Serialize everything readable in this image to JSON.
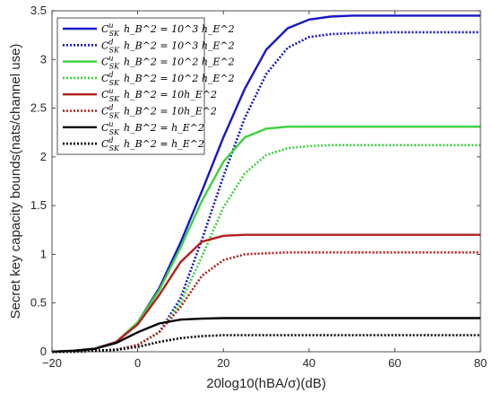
{
  "chart_data": {
    "type": "line",
    "xlabel": "20log10(hBA/σ)(dB)",
    "ylabel": "Secret key capacity bounds(nats/channel use)",
    "xlim": [
      -20,
      80
    ],
    "ylim": [
      0,
      3.5
    ],
    "xticks": [
      "-20",
      "0",
      "20",
      "40",
      "60",
      "80"
    ],
    "yticks": [
      "0",
      "0.5",
      "1",
      "1.5",
      "2",
      "2.5",
      "3",
      "3.5"
    ],
    "grid": false,
    "legend_position": "top-left",
    "series": [
      {
        "name": "C_SK^u h_B^2 = 10^3 h_E^2",
        "legend_main": "C",
        "legend_sup": "u",
        "legend_sub": "SK",
        "legend_rel": "h_B^2 = 10^3 h_E^2",
        "color": "#1616c8",
        "dash": "solid",
        "x": [
          -20,
          -15,
          -10,
          -5,
          0,
          5,
          10,
          15,
          20,
          25,
          30,
          35,
          40,
          45,
          50,
          60,
          70,
          80
        ],
        "y": [
          0,
          0.01,
          0.03,
          0.1,
          0.3,
          0.65,
          1.12,
          1.65,
          2.2,
          2.7,
          3.1,
          3.32,
          3.41,
          3.44,
          3.45,
          3.45,
          3.45,
          3.45
        ]
      },
      {
        "name": "C_SK^d h_B^2 = 10^3 h_E^2",
        "legend_main": "C",
        "legend_sup": "d",
        "legend_sub": "SK",
        "legend_rel": "h_B^2 = 10^3 h_E^2",
        "color": "#1616c8",
        "dash": "dotted",
        "x": [
          -20,
          -15,
          -10,
          -5,
          0,
          5,
          10,
          15,
          20,
          25,
          30,
          35,
          40,
          45,
          50,
          60,
          70,
          80
        ],
        "y": [
          0,
          0,
          0.01,
          0.02,
          0.07,
          0.2,
          0.55,
          1.15,
          1.8,
          2.4,
          2.85,
          3.12,
          3.23,
          3.26,
          3.27,
          3.28,
          3.28,
          3.28
        ]
      },
      {
        "name": "C_SK^u h_B^2 = 10^2 h_E^2",
        "legend_main": "C",
        "legend_sup": "u",
        "legend_sub": "SK",
        "legend_rel": "h_B^2 = 10^2 h_E^2",
        "color": "#3cd23c",
        "dash": "solid",
        "x": [
          -20,
          -15,
          -10,
          -5,
          0,
          5,
          10,
          15,
          20,
          25,
          30,
          35,
          40,
          45,
          50,
          60,
          70,
          80
        ],
        "y": [
          0,
          0.01,
          0.03,
          0.1,
          0.3,
          0.63,
          1.07,
          1.55,
          1.95,
          2.2,
          2.29,
          2.31,
          2.31,
          2.31,
          2.31,
          2.31,
          2.31,
          2.31
        ]
      },
      {
        "name": "C_SK^d h_B^2 = 10^2 h_E^2",
        "legend_main": "C",
        "legend_sup": "d",
        "legend_sub": "SK",
        "legend_rel": "h_B^2 = 10^2 h_E^2",
        "color": "#3cd23c",
        "dash": "dotted",
        "x": [
          -20,
          -15,
          -10,
          -5,
          0,
          5,
          10,
          15,
          20,
          25,
          30,
          35,
          40,
          45,
          50,
          60,
          70,
          80
        ],
        "y": [
          0,
          0,
          0.01,
          0.02,
          0.07,
          0.2,
          0.5,
          0.98,
          1.48,
          1.83,
          2.02,
          2.09,
          2.11,
          2.12,
          2.12,
          2.12,
          2.12,
          2.12
        ]
      },
      {
        "name": "C_SK^u h_B^2 = 10h_E^2",
        "legend_main": "C",
        "legend_sup": "u",
        "legend_sub": "SK",
        "legend_rel": "h_B^2 = 10h_E^2",
        "color": "#b41e1e",
        "dash": "solid",
        "x": [
          -20,
          -15,
          -10,
          -5,
          0,
          5,
          10,
          15,
          20,
          25,
          30,
          35,
          40,
          45,
          50,
          60,
          70,
          80
        ],
        "y": [
          0,
          0.01,
          0.03,
          0.1,
          0.28,
          0.58,
          0.92,
          1.13,
          1.19,
          1.2,
          1.2,
          1.2,
          1.2,
          1.2,
          1.2,
          1.2,
          1.2,
          1.2
        ]
      },
      {
        "name": "C_SK^d h_B^2 = 10h_E^2",
        "legend_main": "C",
        "legend_sup": "d",
        "legend_sub": "SK",
        "legend_rel": "h_B^2 = 10h_E^2",
        "color": "#b41e1e",
        "dash": "dotted",
        "x": [
          -20,
          -15,
          -10,
          -5,
          0,
          5,
          10,
          15,
          20,
          25,
          30,
          35,
          40,
          45,
          50,
          60,
          70,
          80
        ],
        "y": [
          0,
          0,
          0.01,
          0.02,
          0.07,
          0.2,
          0.46,
          0.78,
          0.94,
          1.0,
          1.01,
          1.02,
          1.02,
          1.02,
          1.02,
          1.02,
          1.02,
          1.02
        ]
      },
      {
        "name": "C_SK^u h_B^2 = h_E^2",
        "legend_main": "C",
        "legend_sup": "u",
        "legend_sub": "SK",
        "legend_rel": "h_B^2 = h_E^2",
        "color": "#000000",
        "dash": "solid",
        "x": [
          -20,
          -15,
          -10,
          -5,
          0,
          5,
          10,
          15,
          20,
          25,
          30,
          35,
          40,
          45,
          50,
          60,
          70,
          80
        ],
        "y": [
          0,
          0.01,
          0.03,
          0.09,
          0.2,
          0.29,
          0.33,
          0.34,
          0.345,
          0.345,
          0.345,
          0.345,
          0.345,
          0.345,
          0.345,
          0.345,
          0.345,
          0.345
        ]
      },
      {
        "name": "C_SK^d h_B^2 = h_E^2",
        "legend_main": "C",
        "legend_sup": "d",
        "legend_sub": "SK",
        "legend_rel": "h_B^2 = h_E^2",
        "color": "#000000",
        "dash": "dotted",
        "x": [
          -20,
          -15,
          -10,
          -5,
          0,
          5,
          10,
          15,
          20,
          25,
          30,
          35,
          40,
          45,
          50,
          60,
          70,
          80
        ],
        "y": [
          0,
          0,
          0.01,
          0.02,
          0.05,
          0.1,
          0.14,
          0.16,
          0.17,
          0.17,
          0.17,
          0.17,
          0.17,
          0.17,
          0.17,
          0.17,
          0.17,
          0.17
        ]
      }
    ]
  }
}
